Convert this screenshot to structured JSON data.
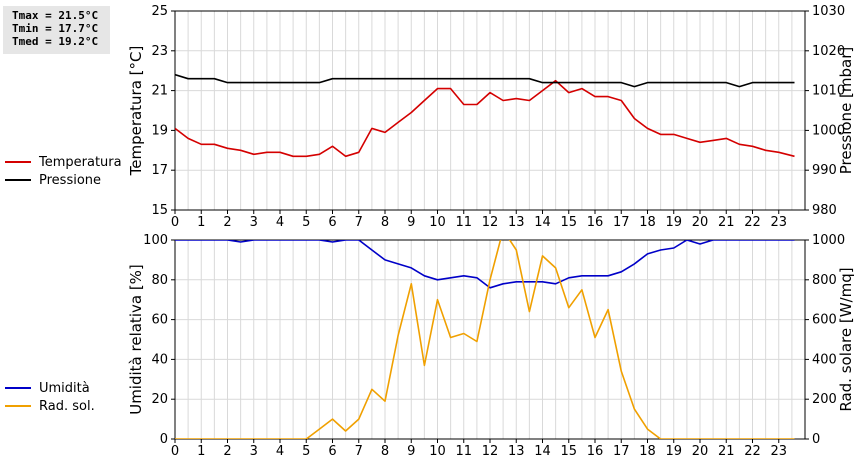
{
  "stats": {
    "tmax": "Tmax = 21.5°C",
    "tmin": "Tmin = 17.7°C",
    "tmed": "Tmed = 19.2°C"
  },
  "legend_top": [
    {
      "label": "Temperatura",
      "color": "#d40000"
    },
    {
      "label": "Pressione",
      "color": "#000000"
    }
  ],
  "legend_bottom": [
    {
      "label": "Umidità",
      "color": "#0000c8"
    },
    {
      "label": "Rad. sol.",
      "color": "#f0a000"
    }
  ],
  "chart_data": [
    {
      "type": "line",
      "xlim": [
        0,
        24
      ],
      "xticks": [
        "0",
        "1",
        "2",
        "3",
        "4",
        "5",
        "6",
        "7",
        "8",
        "9",
        "10",
        "11",
        "12",
        "13",
        "14",
        "15",
        "16",
        "17",
        "18",
        "19",
        "20",
        "21",
        "22",
        "23"
      ],
      "ylabel": "Temperatura [°C]",
      "ylim": [
        15,
        25
      ],
      "yticks": [
        "15",
        "17",
        "19",
        "21",
        "23",
        "25"
      ],
      "y2label": "Pressione [mbar]",
      "y2lim": [
        980,
        1030
      ],
      "y2ticks": [
        "980",
        "990",
        "1000",
        "1010",
        "1020",
        "1030"
      ],
      "grid": true,
      "series": [
        {
          "name": "Temperatura",
          "axis": "left",
          "color": "#d40000",
          "x": [
            0,
            0.5,
            1,
            1.5,
            2,
            2.5,
            3,
            3.5,
            4,
            4.5,
            5,
            5.5,
            6,
            6.5,
            7,
            7.5,
            8,
            8.5,
            9,
            9.5,
            10,
            10.5,
            11,
            11.5,
            12,
            12.5,
            13,
            13.5,
            14,
            14.5,
            15,
            15.5,
            16,
            16.5,
            17,
            17.5,
            18,
            18.5,
            19,
            19.5,
            20,
            20.5,
            21,
            21.5,
            22,
            22.5,
            23,
            23.6
          ],
          "y": [
            19.1,
            18.6,
            18.3,
            18.3,
            18.1,
            18.0,
            17.8,
            17.9,
            17.9,
            17.7,
            17.7,
            17.8,
            18.2,
            17.7,
            17.9,
            19.1,
            18.9,
            19.4,
            19.9,
            20.5,
            21.1,
            21.1,
            20.3,
            20.3,
            20.9,
            20.5,
            20.6,
            20.5,
            21.0,
            21.5,
            20.9,
            21.1,
            20.7,
            20.7,
            20.5,
            19.6,
            19.1,
            18.8,
            18.8,
            18.6,
            18.4,
            18.5,
            18.6,
            18.3,
            18.2,
            18.0,
            17.9,
            17.7
          ]
        },
        {
          "name": "Pressione",
          "axis": "right",
          "color": "#000000",
          "x": [
            0,
            0.5,
            1,
            1.5,
            2,
            2.5,
            3,
            3.5,
            4,
            4.5,
            5,
            5.5,
            6,
            6.5,
            7,
            7.5,
            8,
            8.5,
            9,
            9.5,
            10,
            10.5,
            11,
            11.5,
            12,
            12.5,
            13,
            13.5,
            14,
            14.5,
            15,
            15.5,
            16,
            16.5,
            17,
            17.5,
            18,
            18.5,
            19,
            19.5,
            20,
            20.5,
            21,
            21.5,
            22,
            22.5,
            23,
            23.6
          ],
          "y": [
            1014,
            1013,
            1013,
            1013,
            1012,
            1012,
            1012,
            1012,
            1012,
            1012,
            1012,
            1012,
            1013,
            1013,
            1013,
            1013,
            1013,
            1013,
            1013,
            1013,
            1013,
            1013,
            1013,
            1013,
            1013,
            1013,
            1013,
            1013,
            1012,
            1012,
            1012,
            1012,
            1012,
            1012,
            1012,
            1011,
            1012,
            1012,
            1012,
            1012,
            1012,
            1012,
            1012,
            1011,
            1012,
            1012,
            1012,
            1012
          ]
        }
      ]
    },
    {
      "type": "line",
      "xlim": [
        0,
        24
      ],
      "xticks": [
        "0",
        "1",
        "2",
        "3",
        "4",
        "5",
        "6",
        "7",
        "8",
        "9",
        "10",
        "11",
        "12",
        "13",
        "14",
        "15",
        "16",
        "17",
        "18",
        "19",
        "20",
        "21",
        "22",
        "23"
      ],
      "ylabel": "Umidità relativa [%]",
      "ylim": [
        0,
        100
      ],
      "yticks": [
        "0",
        "20",
        "40",
        "60",
        "80",
        "100"
      ],
      "y2label": "Rad. solare [W/mq]",
      "y2lim": [
        0,
        1000
      ],
      "y2ticks": [
        "0",
        "200",
        "400",
        "600",
        "800",
        "1000"
      ],
      "grid": true,
      "series": [
        {
          "name": "Umidità",
          "axis": "left",
          "color": "#0000c8",
          "x": [
            0,
            0.5,
            1,
            1.5,
            2,
            2.5,
            3,
            3.5,
            4,
            4.5,
            5,
            5.5,
            6,
            6.5,
            7,
            7.5,
            8,
            8.5,
            9,
            9.5,
            10,
            10.5,
            11,
            11.5,
            12,
            12.5,
            13,
            13.5,
            14,
            14.5,
            15,
            15.5,
            16,
            16.5,
            17,
            17.5,
            18,
            18.5,
            19,
            19.5,
            20,
            20.5,
            21,
            21.5,
            22,
            22.5,
            23,
            23.6
          ],
          "y": [
            100,
            100,
            100,
            100,
            100,
            99,
            100,
            100,
            100,
            100,
            100,
            100,
            99,
            100,
            100,
            95,
            90,
            88,
            86,
            82,
            80,
            81,
            82,
            81,
            76,
            78,
            79,
            79,
            79,
            78,
            81,
            82,
            82,
            82,
            84,
            88,
            93,
            95,
            96,
            100,
            98,
            100,
            100,
            100,
            100,
            100,
            100,
            100
          ]
        },
        {
          "name": "Rad. sol.",
          "axis": "right",
          "color": "#f0a000",
          "x": [
            0,
            0.5,
            1,
            1.5,
            2,
            2.5,
            3,
            3.5,
            4,
            4.5,
            5,
            5.5,
            6,
            6.5,
            7,
            7.5,
            8,
            8.5,
            9,
            9.5,
            10,
            10.5,
            11,
            11.5,
            12,
            12.5,
            13,
            13.5,
            14,
            14.5,
            15,
            15.5,
            16,
            16.5,
            17,
            17.5,
            18,
            18.5,
            19,
            19.5,
            20,
            20.5,
            21,
            21.5,
            22,
            22.5,
            23,
            23.6
          ],
          "y": [
            0,
            0,
            0,
            0,
            0,
            0,
            0,
            0,
            0,
            0,
            0,
            50,
            100,
            40,
            100,
            250,
            190,
            520,
            780,
            370,
            700,
            510,
            530,
            490,
            800,
            1050,
            950,
            640,
            920,
            860,
            660,
            750,
            510,
            650,
            340,
            150,
            50,
            0,
            0,
            0,
            0,
            0,
            0,
            0,
            0,
            0,
            0,
            0
          ]
        }
      ]
    }
  ]
}
